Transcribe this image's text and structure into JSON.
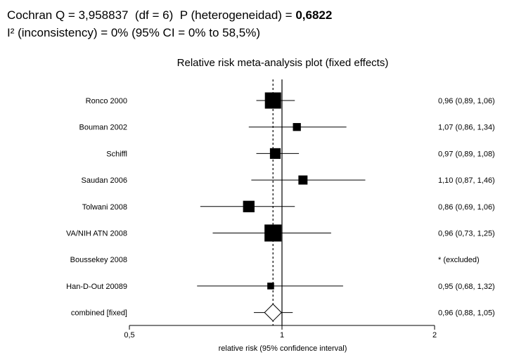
{
  "header": {
    "line1_text": "Cochran Q = 3,958837  (df = 6)  P (heterogeneidad) = ",
    "line1_bold": "0,6822",
    "line2_text": "I² (inconsistency) = 0% (95% CI = 0% to 58,5%)"
  },
  "chart_data": {
    "type": "forest",
    "title": "Relative risk meta-analysis plot (fixed effects)",
    "xlabel": "relative risk (95% confidence interval)",
    "xlim": [
      0.5,
      2
    ],
    "xticks": [
      {
        "value": 0.5,
        "label": "0,5"
      },
      {
        "value": 1,
        "label": "1"
      },
      {
        "value": 2,
        "label": "2"
      }
    ],
    "reference_line": 1,
    "pooled_line": 0.96,
    "studies": [
      {
        "name": "Ronco 2000",
        "rr": 0.96,
        "lo": 0.89,
        "hi": 1.06,
        "weight": 3.4,
        "label": "0,96 (0,89, 1,06)"
      },
      {
        "name": "Bouman 2002",
        "rr": 1.07,
        "lo": 0.86,
        "hi": 1.34,
        "weight": 1.3,
        "label": "1,07 (0,86, 1,34)"
      },
      {
        "name": "Schiffl",
        "rr": 0.97,
        "lo": 0.89,
        "hi": 1.08,
        "weight": 2.0,
        "label": "0,97 (0,89, 1,08)"
      },
      {
        "name": "Saudan 2006",
        "rr": 1.1,
        "lo": 0.87,
        "hi": 1.46,
        "weight": 1.6,
        "label": "1,10 (0,87, 1,46)"
      },
      {
        "name": "Tolwani 2008",
        "rr": 0.86,
        "lo": 0.69,
        "hi": 1.06,
        "weight": 2.2,
        "label": "0,86 (0,69, 1,06)"
      },
      {
        "name": "VA/NIH ATN 2008",
        "rr": 0.96,
        "lo": 0.73,
        "hi": 1.25,
        "weight": 3.6,
        "label": "0,96 (0,73, 1,25)"
      },
      {
        "name": "Boussekey 2008",
        "rr": null,
        "lo": null,
        "hi": null,
        "weight": 0,
        "label": "* (excluded)"
      },
      {
        "name": "Han-D-Out 20089",
        "rr": 0.95,
        "lo": 0.68,
        "hi": 1.32,
        "weight": 1.0,
        "label": "0,95 (0,68, 1,32)"
      }
    ],
    "combined": {
      "name": "combined [fixed]",
      "rr": 0.96,
      "lo": 0.88,
      "hi": 1.05,
      "label": "0,96 (0,88, 1,05)"
    }
  }
}
